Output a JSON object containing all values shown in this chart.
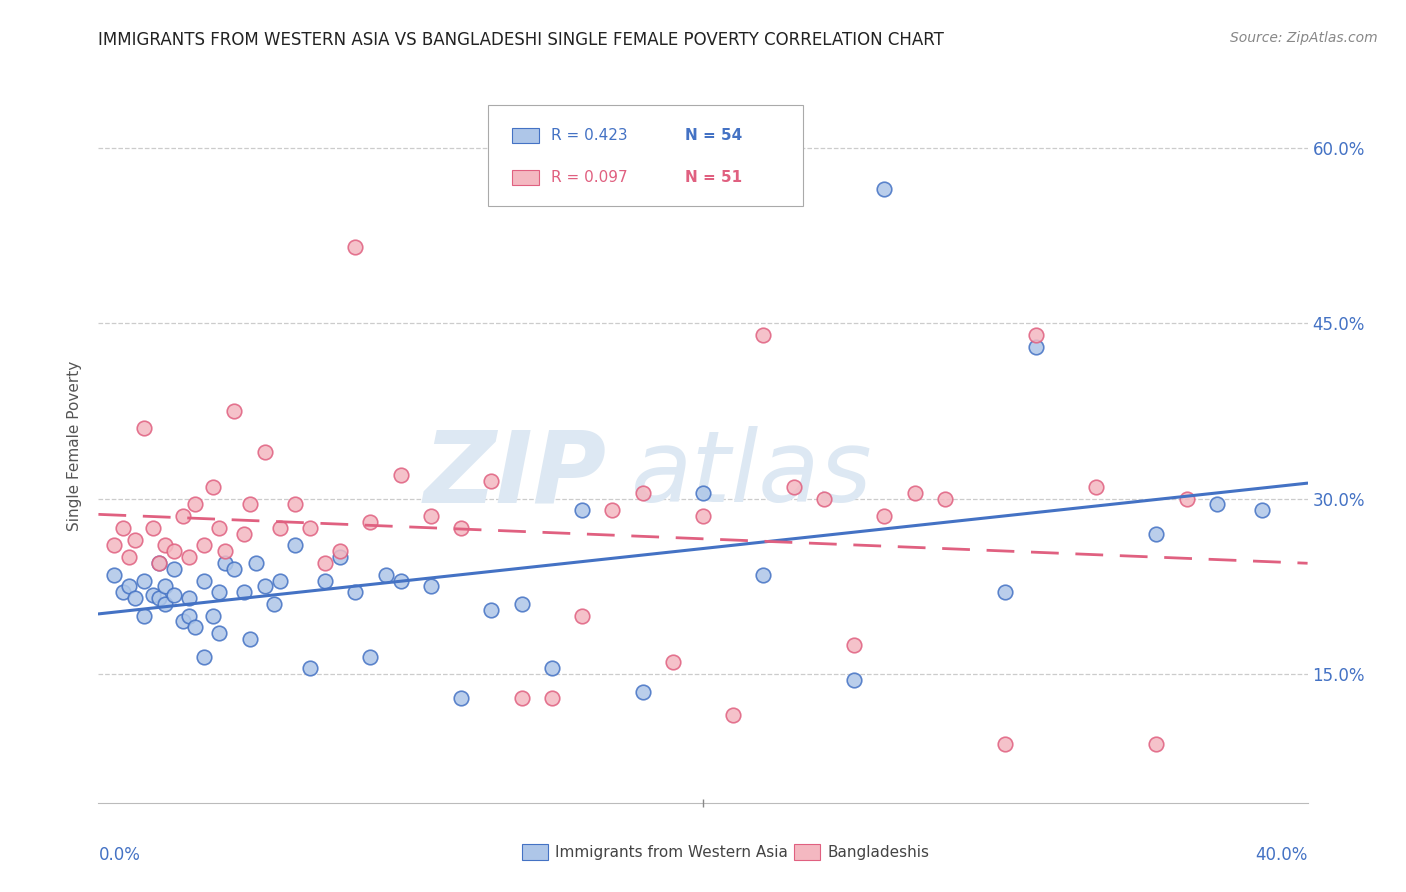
{
  "title": "IMMIGRANTS FROM WESTERN ASIA VS BANGLADESHI SINGLE FEMALE POVERTY CORRELATION CHART",
  "source": "Source: ZipAtlas.com",
  "ylabel": "Single Female Poverty",
  "ytick_labels": [
    "15.0%",
    "30.0%",
    "45.0%",
    "60.0%"
  ],
  "ytick_values": [
    0.15,
    0.3,
    0.45,
    0.6
  ],
  "xlim": [
    0.0,
    0.4
  ],
  "ylim": [
    0.04,
    0.65
  ],
  "legend_blue_r": "0.423",
  "legend_blue_n": "54",
  "legend_pink_r": "0.097",
  "legend_pink_n": "51",
  "label_blue": "Immigrants from Western Asia",
  "label_pink": "Bangladeshis",
  "blue_color": "#aec6e8",
  "pink_color": "#f4b8c1",
  "blue_edge_color": "#4472c4",
  "pink_edge_color": "#e06080",
  "blue_line_color": "#4472c4",
  "pink_line_color": "#e06080",
  "right_axis_color": "#4472c4",
  "watermark_color": "#d8e4f0",
  "blue_scatter_x": [
    0.005,
    0.008,
    0.01,
    0.012,
    0.015,
    0.015,
    0.018,
    0.02,
    0.02,
    0.022,
    0.022,
    0.025,
    0.025,
    0.028,
    0.03,
    0.03,
    0.032,
    0.035,
    0.035,
    0.038,
    0.04,
    0.04,
    0.042,
    0.045,
    0.048,
    0.05,
    0.052,
    0.055,
    0.058,
    0.06,
    0.065,
    0.07,
    0.075,
    0.08,
    0.085,
    0.09,
    0.095,
    0.1,
    0.11,
    0.12,
    0.13,
    0.14,
    0.15,
    0.16,
    0.18,
    0.2,
    0.22,
    0.25,
    0.26,
    0.3,
    0.31,
    0.35,
    0.37,
    0.385
  ],
  "blue_scatter_y": [
    0.235,
    0.22,
    0.225,
    0.215,
    0.23,
    0.2,
    0.218,
    0.215,
    0.245,
    0.225,
    0.21,
    0.24,
    0.218,
    0.195,
    0.2,
    0.215,
    0.19,
    0.165,
    0.23,
    0.2,
    0.22,
    0.185,
    0.245,
    0.24,
    0.22,
    0.18,
    0.245,
    0.225,
    0.21,
    0.23,
    0.26,
    0.155,
    0.23,
    0.25,
    0.22,
    0.165,
    0.235,
    0.23,
    0.225,
    0.13,
    0.205,
    0.21,
    0.155,
    0.29,
    0.135,
    0.305,
    0.235,
    0.145,
    0.565,
    0.22,
    0.43,
    0.27,
    0.295,
    0.29
  ],
  "pink_scatter_x": [
    0.005,
    0.008,
    0.01,
    0.012,
    0.015,
    0.018,
    0.02,
    0.022,
    0.025,
    0.028,
    0.03,
    0.032,
    0.035,
    0.038,
    0.04,
    0.042,
    0.045,
    0.048,
    0.05,
    0.055,
    0.06,
    0.065,
    0.07,
    0.075,
    0.08,
    0.085,
    0.09,
    0.1,
    0.11,
    0.12,
    0.13,
    0.14,
    0.15,
    0.16,
    0.17,
    0.18,
    0.19,
    0.2,
    0.21,
    0.22,
    0.23,
    0.24,
    0.25,
    0.26,
    0.27,
    0.28,
    0.3,
    0.31,
    0.33,
    0.35,
    0.36
  ],
  "pink_scatter_y": [
    0.26,
    0.275,
    0.25,
    0.265,
    0.36,
    0.275,
    0.245,
    0.26,
    0.255,
    0.285,
    0.25,
    0.295,
    0.26,
    0.31,
    0.275,
    0.255,
    0.375,
    0.27,
    0.295,
    0.34,
    0.275,
    0.295,
    0.275,
    0.245,
    0.255,
    0.515,
    0.28,
    0.32,
    0.285,
    0.275,
    0.315,
    0.13,
    0.13,
    0.2,
    0.29,
    0.305,
    0.16,
    0.285,
    0.115,
    0.44,
    0.31,
    0.3,
    0.175,
    0.285,
    0.305,
    0.3,
    0.09,
    0.44,
    0.31,
    0.09,
    0.3
  ]
}
